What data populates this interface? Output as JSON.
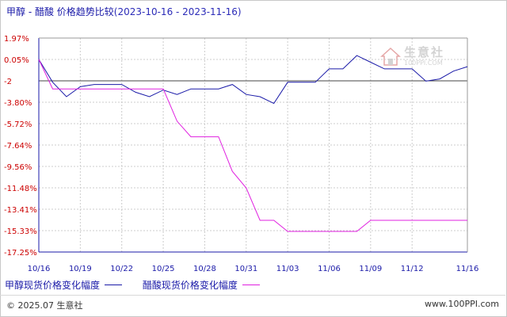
{
  "title": {
    "main": "甲醇 - 醋酸 价格趋势比较",
    "range": "(2023-10-16 - 2023-11-16)"
  },
  "watermark": {
    "brand": "生意社",
    "url": "100PPI.COM"
  },
  "footer": {
    "left": "© 2025.07 生意社",
    "right": "www.100PPI.com"
  },
  "colors": {
    "series1": "#1a1aa8",
    "series2": "#e020e0",
    "axis": "#1a1aa8",
    "grid": "#cccccc",
    "ylabel": "#cc0000"
  },
  "chart_data": {
    "type": "line",
    "title": "甲醇 - 醋酸 价格趋势比较",
    "ylim": [
      -17.25,
      1.97
    ],
    "yticks": [
      "1.97%",
      "0.05%",
      "-2",
      "-3.80%",
      "-5.72%",
      "-7.64%",
      "-9.56%",
      "-11.48%",
      "-13.41%",
      "-15.33%",
      "-17.25%"
    ],
    "ytick_values": [
      1.97,
      0.05,
      -1.87,
      -3.8,
      -5.72,
      -7.64,
      -9.56,
      -11.48,
      -13.41,
      -15.33,
      -17.25
    ],
    "xticks": [
      "10/16",
      "10/19",
      "10/22",
      "10/25",
      "10/28",
      "10/31",
      "11/03",
      "11/06",
      "11/09",
      "11/12",
      "11/16"
    ],
    "grid": true,
    "legend_position": "bottom",
    "x": [
      "10/16",
      "10/17",
      "10/18",
      "10/19",
      "10/20",
      "10/21",
      "10/22",
      "10/23",
      "10/24",
      "10/25",
      "10/26",
      "10/27",
      "10/28",
      "10/29",
      "10/30",
      "10/31",
      "11/01",
      "11/02",
      "11/03",
      "11/04",
      "11/05",
      "11/06",
      "11/07",
      "11/08",
      "11/09",
      "11/10",
      "11/11",
      "11/12",
      "11/13",
      "11/14",
      "11/15",
      "11/16"
    ],
    "series": [
      {
        "name": "甲醇现货价格变化幅度",
        "values": [
          0.05,
          -2.0,
          -3.3,
          -2.4,
          -2.2,
          -2.2,
          -2.2,
          -2.9,
          -3.3,
          -2.7,
          -3.1,
          -2.6,
          -2.6,
          -2.6,
          -2.2,
          -3.1,
          -3.3,
          -3.9,
          -2.0,
          -2.0,
          -2.0,
          -0.8,
          -0.8,
          0.4,
          -0.2,
          -0.8,
          -0.8,
          -0.8,
          -1.9,
          -1.7,
          -1.0,
          -0.6
        ]
      },
      {
        "name": "醋酸现货价格变化幅度",
        "values": [
          0.05,
          -2.6,
          -2.6,
          -2.6,
          -2.6,
          -2.6,
          -2.6,
          -2.6,
          -2.6,
          -2.6,
          -5.5,
          -6.9,
          -6.9,
          -6.9,
          -10.0,
          -11.5,
          -14.4,
          -14.4,
          -15.4,
          -15.4,
          -15.4,
          -15.4,
          -15.4,
          -15.4,
          -14.4,
          -14.4,
          -14.4,
          -14.4,
          -14.4,
          -14.4,
          -14.4,
          -14.4
        ]
      }
    ]
  }
}
